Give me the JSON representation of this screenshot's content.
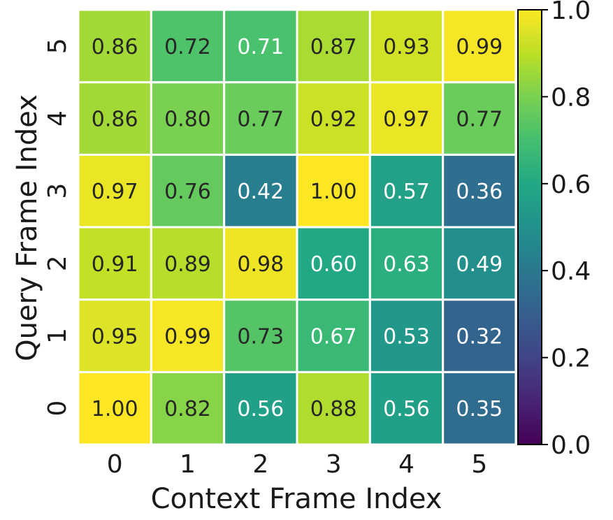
{
  "chart_data": {
    "type": "heatmap",
    "xlabel": "Context Frame Index",
    "ylabel": "Query Frame Index",
    "x_categories": [
      "0",
      "1",
      "2",
      "3",
      "4",
      "5"
    ],
    "y_categories": [
      "0",
      "1",
      "2",
      "3",
      "4",
      "5"
    ],
    "y_order": "bottom-to-top",
    "values": [
      [
        1.0,
        0.82,
        0.56,
        0.88,
        0.56,
        0.35
      ],
      [
        0.95,
        0.99,
        0.73,
        0.67,
        0.53,
        0.32
      ],
      [
        0.91,
        0.89,
        0.98,
        0.6,
        0.63,
        0.49
      ],
      [
        0.97,
        0.76,
        0.42,
        1.0,
        0.57,
        0.36
      ],
      [
        0.86,
        0.8,
        0.77,
        0.92,
        0.97,
        0.77
      ],
      [
        0.86,
        0.72,
        0.71,
        0.87,
        0.93,
        0.99
      ]
    ],
    "value_labels": [
      [
        "1.00",
        "0.82",
        "0.56",
        "0.88",
        "0.56",
        "0.35"
      ],
      [
        "0.95",
        "0.99",
        "0.73",
        "0.67",
        "0.53",
        "0.32"
      ],
      [
        "0.91",
        "0.89",
        "0.98",
        "0.60",
        "0.63",
        "0.49"
      ],
      [
        "0.97",
        "0.76",
        "0.42",
        "1.00",
        "0.57",
        "0.36"
      ],
      [
        "0.86",
        "0.80",
        "0.77",
        "0.92",
        "0.97",
        "0.77"
      ],
      [
        "0.86",
        "0.72",
        "0.71",
        "0.87",
        "0.93",
        "0.99"
      ]
    ],
    "colormap": "viridis",
    "vmin": 0.0,
    "vmax": 1.0,
    "colorbar": {
      "ticks": [
        0.0,
        0.2,
        0.4,
        0.6,
        0.8,
        1.0
      ],
      "tick_labels": [
        "0.0",
        "0.2",
        "0.4",
        "0.6",
        "0.8",
        "1.0"
      ],
      "placement": "right"
    },
    "grid_line_color": "#ffffff",
    "dark_text_color": "#262626",
    "light_text_color": "#ffffff"
  }
}
